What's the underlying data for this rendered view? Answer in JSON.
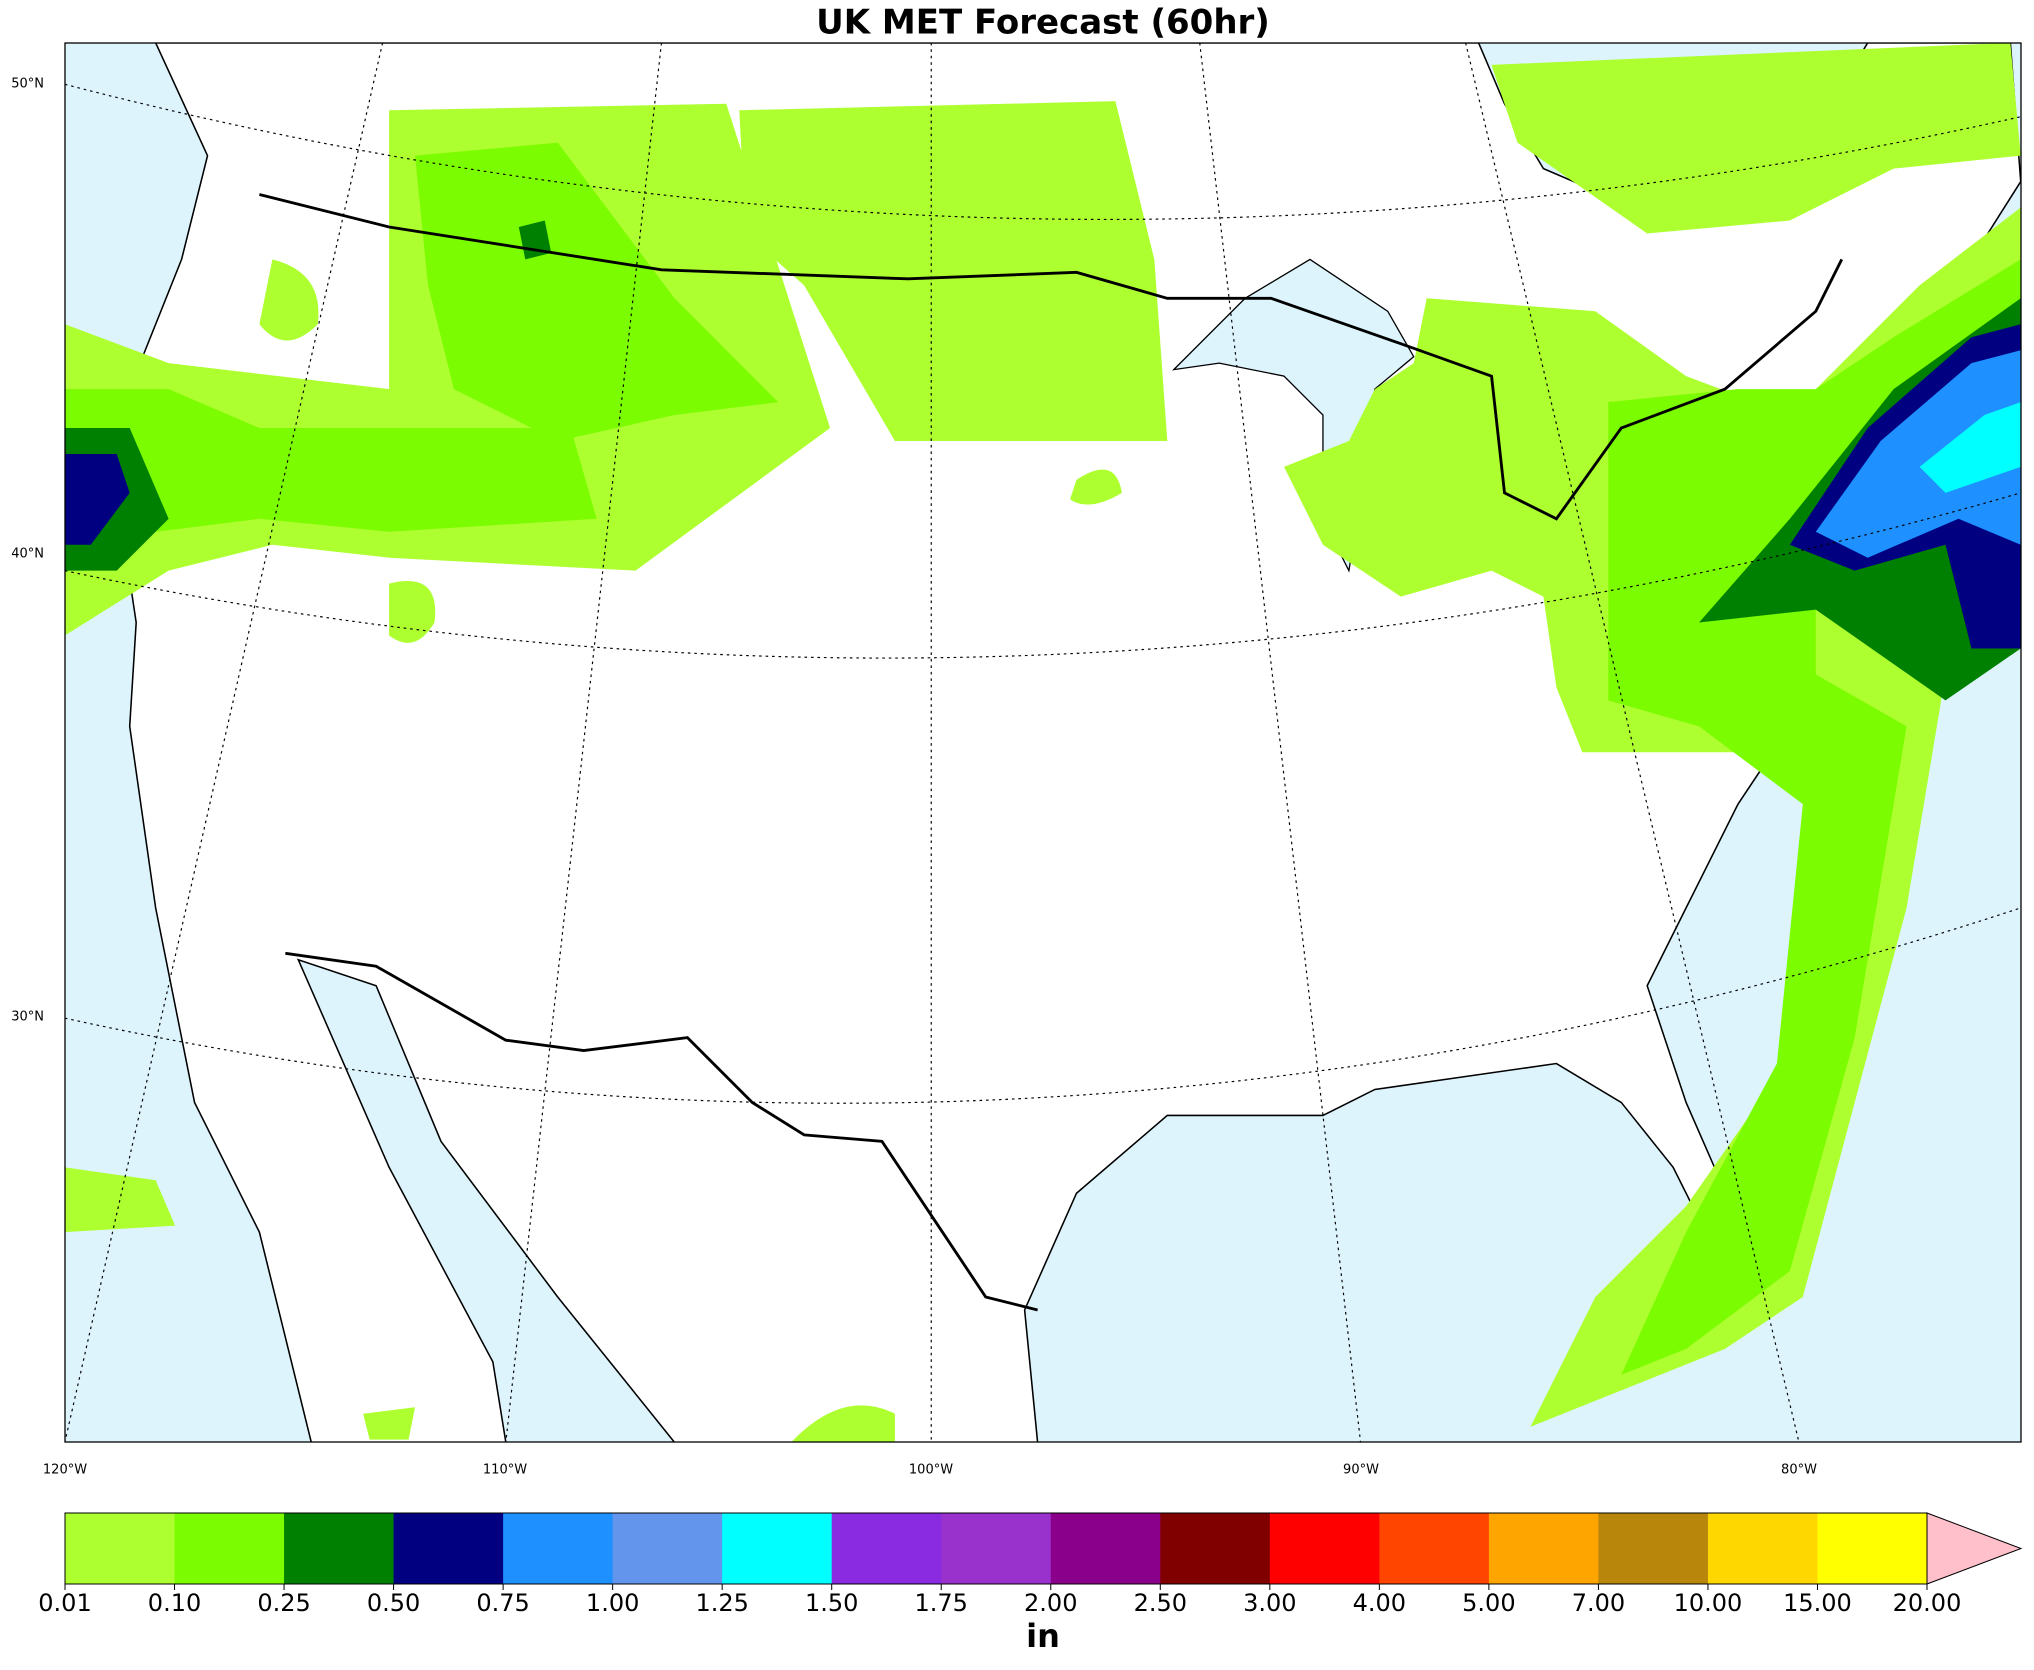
{
  "title": "UK MET Forecast (60hr)",
  "map": {
    "lat_labels": [
      "50°N",
      "40°N",
      "30°N"
    ],
    "lon_labels": [
      "120°W",
      "110°W",
      "100°W",
      "90°W",
      "80°W"
    ]
  },
  "colorbar": {
    "label": "in",
    "levels": [
      0.01,
      {
        "value": 0.1,
        "label": "0.10"
      },
      0.25,
      {
        "value": 0.5,
        "label": "0.50"
      },
      0.75,
      {
        "value": 1,
        "label": "1.00"
      },
      1.25,
      {
        "value": 1.5,
        "label": "1.50"
      },
      1.75,
      {
        "value": 2,
        "label": "2.00"
      },
      {
        "value": 2.5,
        "label": "2.50"
      },
      {
        "value": 3,
        "label": "3.00"
      },
      {
        "value": 4,
        "label": "4.00"
      },
      {
        "value": 5,
        "label": "5.00"
      },
      {
        "value": 7,
        "label": "7.00"
      },
      {
        "value": 10,
        "label": "10.00"
      },
      {
        "value": 15,
        "label": "15.00"
      },
      {
        "value": 20,
        "label": "20.00"
      }
    ],
    "colors": [
      "#adff2f",
      "#7cfc00",
      "#008000",
      "#000080",
      "#1e90ff",
      "#6495ed",
      "#00ffff",
      "#8a2be2",
      "#9932cc",
      "#8b008b",
      "#800000",
      "#ff0000",
      "#ff4500",
      "#ffa500",
      "#b8860b",
      "#ffd700",
      "#ffff00"
    ],
    "extend_color": "#ffc0cb"
  }
}
